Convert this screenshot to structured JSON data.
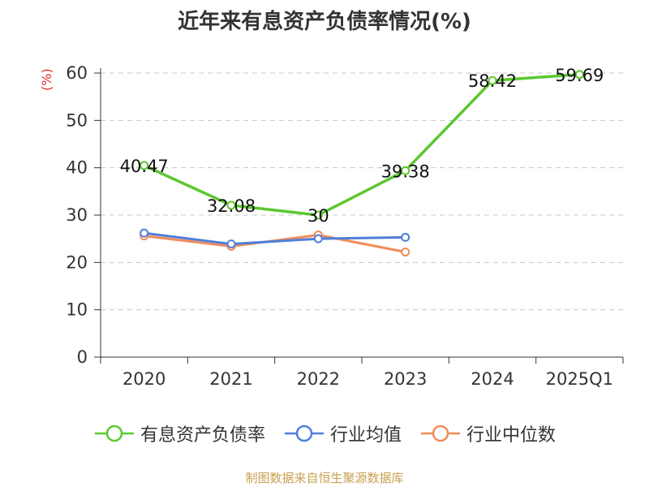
{
  "chart_data": {
    "type": "line",
    "title": "近年来有息资产负债率情况(%)",
    "ylabel": "(%)",
    "xlabel": "",
    "categories": [
      "2020",
      "2021",
      "2022",
      "2023",
      "2024",
      "2025Q1"
    ],
    "ylim": [
      0,
      60
    ],
    "yticks": [
      0,
      10,
      20,
      30,
      40,
      50,
      60
    ],
    "grid": "horizontal-dashed",
    "legend_position": "bottom",
    "series": [
      {
        "name": "有息资产负债率",
        "color": "#5cc72f",
        "values": [
          40.47,
          32.08,
          30,
          39.38,
          58.42,
          59.69
        ],
        "labels": [
          "40.47",
          "32.08",
          "30",
          "39.38",
          "58.42",
          "59.69"
        ]
      },
      {
        "name": "行业均值",
        "color": "#4f7fd9",
        "values": [
          26.2,
          23.9,
          25.0,
          25.3,
          null,
          null
        ]
      },
      {
        "name": "行业中位数",
        "color": "#f08c5a",
        "values": [
          25.6,
          23.4,
          25.8,
          22.2,
          null,
          null
        ]
      }
    ]
  },
  "source": "制图数据来自恒生聚源数据库"
}
